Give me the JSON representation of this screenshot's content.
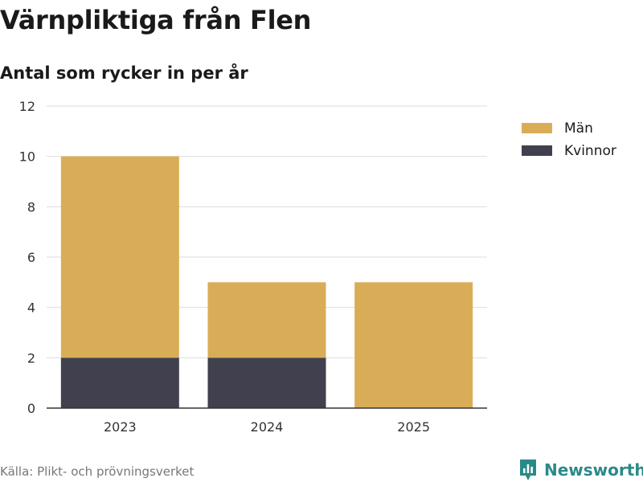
{
  "title": "Värnpliktiga från Flen",
  "subtitle": "Antal som rycker in per år",
  "source": "Källa: Plikt- och prövningsverket",
  "brand": "Newsworthy",
  "colors": {
    "man": "#d9ad57",
    "kvinnor": "#41404e",
    "grid": "#dddddd",
    "axis": "#333333",
    "brand": "#2a8a8a"
  },
  "chart_data": {
    "type": "bar",
    "stacked": true,
    "categories": [
      "2023",
      "2024",
      "2025"
    ],
    "series": [
      {
        "name": "Kvinnor",
        "values": [
          2,
          2,
          0
        ],
        "color": "#41404e"
      },
      {
        "name": "Män",
        "values": [
          8,
          3,
          5
        ],
        "color": "#d9ad57"
      }
    ],
    "ylim": [
      0,
      12
    ],
    "yticks": [
      0,
      2,
      4,
      6,
      8,
      10,
      12
    ],
    "legend": [
      "Män",
      "Kvinnor"
    ],
    "legend_position": "top-right",
    "xlabel": "",
    "ylabel": ""
  }
}
